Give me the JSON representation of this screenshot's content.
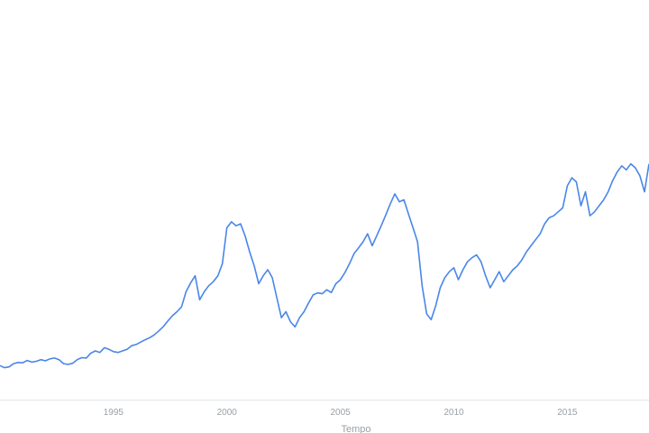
{
  "chart_data": {
    "type": "line",
    "title": "",
    "xlabel": "Tempo",
    "ylabel": "",
    "xlim": [
      1990.0,
      2018.6
    ],
    "ylim": [
      0,
      1.0
    ],
    "grid": false,
    "line_color": "#4a86e8",
    "x_ticks": [
      {
        "value": 1995,
        "label": "1995"
      },
      {
        "value": 2000,
        "label": "2000"
      },
      {
        "value": 2005,
        "label": "2005"
      },
      {
        "value": 2010,
        "label": "2010"
      },
      {
        "value": 2015,
        "label": "2015"
      }
    ],
    "series": [
      {
        "name": "",
        "points": [
          [
            1990.0,
            0.085
          ],
          [
            1990.2,
            0.08
          ],
          [
            1990.4,
            0.082
          ],
          [
            1990.6,
            0.09
          ],
          [
            1990.8,
            0.093
          ],
          [
            1991.0,
            0.092
          ],
          [
            1991.2,
            0.098
          ],
          [
            1991.4,
            0.094
          ],
          [
            1991.6,
            0.096
          ],
          [
            1991.8,
            0.1
          ],
          [
            1992.0,
            0.097
          ],
          [
            1992.2,
            0.102
          ],
          [
            1992.4,
            0.104
          ],
          [
            1992.6,
            0.1
          ],
          [
            1992.8,
            0.09
          ],
          [
            1993.0,
            0.088
          ],
          [
            1993.2,
            0.091
          ],
          [
            1993.4,
            0.1
          ],
          [
            1993.6,
            0.105
          ],
          [
            1993.8,
            0.104
          ],
          [
            1994.0,
            0.116
          ],
          [
            1994.2,
            0.122
          ],
          [
            1994.4,
            0.118
          ],
          [
            1994.6,
            0.13
          ],
          [
            1994.8,
            0.126
          ],
          [
            1995.0,
            0.12
          ],
          [
            1995.2,
            0.118
          ],
          [
            1995.4,
            0.122
          ],
          [
            1995.6,
            0.126
          ],
          [
            1995.8,
            0.135
          ],
          [
            1996.0,
            0.138
          ],
          [
            1996.2,
            0.144
          ],
          [
            1996.4,
            0.15
          ],
          [
            1996.6,
            0.155
          ],
          [
            1996.8,
            0.162
          ],
          [
            1997.0,
            0.172
          ],
          [
            1997.2,
            0.183
          ],
          [
            1997.4,
            0.197
          ],
          [
            1997.6,
            0.21
          ],
          [
            1997.8,
            0.22
          ],
          [
            1998.0,
            0.232
          ],
          [
            1998.2,
            0.27
          ],
          [
            1998.4,
            0.292
          ],
          [
            1998.6,
            0.31
          ],
          [
            1998.8,
            0.25
          ],
          [
            1999.0,
            0.27
          ],
          [
            1999.2,
            0.285
          ],
          [
            1999.4,
            0.295
          ],
          [
            1999.6,
            0.31
          ],
          [
            1999.8,
            0.34
          ],
          [
            2000.0,
            0.43
          ],
          [
            2000.2,
            0.445
          ],
          [
            2000.4,
            0.435
          ],
          [
            2000.6,
            0.44
          ],
          [
            2000.8,
            0.41
          ],
          [
            2001.0,
            0.37
          ],
          [
            2001.2,
            0.335
          ],
          [
            2001.4,
            0.29
          ],
          [
            2001.6,
            0.31
          ],
          [
            2001.8,
            0.325
          ],
          [
            2002.0,
            0.305
          ],
          [
            2002.2,
            0.255
          ],
          [
            2002.4,
            0.205
          ],
          [
            2002.6,
            0.22
          ],
          [
            2002.8,
            0.195
          ],
          [
            2003.0,
            0.182
          ],
          [
            2003.2,
            0.205
          ],
          [
            2003.4,
            0.22
          ],
          [
            2003.6,
            0.242
          ],
          [
            2003.8,
            0.262
          ],
          [
            2004.0,
            0.267
          ],
          [
            2004.2,
            0.265
          ],
          [
            2004.4,
            0.275
          ],
          [
            2004.6,
            0.268
          ],
          [
            2004.8,
            0.29
          ],
          [
            2005.0,
            0.3
          ],
          [
            2005.2,
            0.318
          ],
          [
            2005.4,
            0.34
          ],
          [
            2005.6,
            0.365
          ],
          [
            2005.8,
            0.38
          ],
          [
            2006.0,
            0.395
          ],
          [
            2006.2,
            0.415
          ],
          [
            2006.4,
            0.385
          ],
          [
            2006.6,
            0.41
          ],
          [
            2006.8,
            0.435
          ],
          [
            2007.0,
            0.462
          ],
          [
            2007.2,
            0.49
          ],
          [
            2007.4,
            0.515
          ],
          [
            2007.6,
            0.495
          ],
          [
            2007.8,
            0.5
          ],
          [
            2008.0,
            0.465
          ],
          [
            2008.2,
            0.43
          ],
          [
            2008.4,
            0.395
          ],
          [
            2008.6,
            0.285
          ],
          [
            2008.8,
            0.215
          ],
          [
            2009.0,
            0.2
          ],
          [
            2009.2,
            0.235
          ],
          [
            2009.4,
            0.28
          ],
          [
            2009.6,
            0.305
          ],
          [
            2009.8,
            0.32
          ],
          [
            2010.0,
            0.33
          ],
          [
            2010.2,
            0.3
          ],
          [
            2010.4,
            0.325
          ],
          [
            2010.6,
            0.345
          ],
          [
            2010.8,
            0.355
          ],
          [
            2011.0,
            0.362
          ],
          [
            2011.2,
            0.345
          ],
          [
            2011.4,
            0.31
          ],
          [
            2011.6,
            0.28
          ],
          [
            2011.8,
            0.3
          ],
          [
            2012.0,
            0.32
          ],
          [
            2012.2,
            0.295
          ],
          [
            2012.4,
            0.31
          ],
          [
            2012.6,
            0.325
          ],
          [
            2012.8,
            0.335
          ],
          [
            2013.0,
            0.35
          ],
          [
            2013.2,
            0.37
          ],
          [
            2013.4,
            0.385
          ],
          [
            2013.6,
            0.4
          ],
          [
            2013.8,
            0.415
          ],
          [
            2014.0,
            0.44
          ],
          [
            2014.2,
            0.455
          ],
          [
            2014.4,
            0.46
          ],
          [
            2014.6,
            0.47
          ],
          [
            2014.8,
            0.48
          ],
          [
            2015.0,
            0.535
          ],
          [
            2015.2,
            0.555
          ],
          [
            2015.4,
            0.545
          ],
          [
            2015.6,
            0.485
          ],
          [
            2015.8,
            0.52
          ],
          [
            2016.0,
            0.46
          ],
          [
            2016.2,
            0.47
          ],
          [
            2016.4,
            0.485
          ],
          [
            2016.6,
            0.5
          ],
          [
            2016.8,
            0.52
          ],
          [
            2017.0,
            0.548
          ],
          [
            2017.2,
            0.57
          ],
          [
            2017.4,
            0.585
          ],
          [
            2017.6,
            0.575
          ],
          [
            2017.8,
            0.59
          ],
          [
            2018.0,
            0.58
          ],
          [
            2018.2,
            0.56
          ],
          [
            2018.4,
            0.52
          ],
          [
            2018.6,
            0.59
          ]
        ]
      }
    ]
  }
}
